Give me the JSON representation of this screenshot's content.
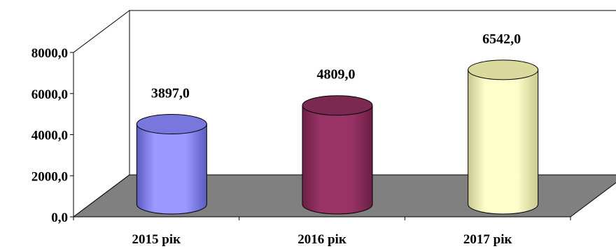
{
  "chart_data": {
    "type": "bar",
    "style": "3d-cylinder",
    "categories": [
      "2015 рік",
      "2016 рік",
      "2017 рік"
    ],
    "values": [
      3897.0,
      4809.0,
      6542.0
    ],
    "value_labels": [
      "3897,0",
      "4809,0",
      "6542,0"
    ],
    "yticks": [
      "0,0",
      "2000,0",
      "4000,0",
      "6000,0",
      "8000,0"
    ],
    "ytick_values": [
      0,
      2000,
      4000,
      6000,
      8000
    ],
    "ylim": [
      0,
      8000
    ],
    "title": "",
    "xlabel": "",
    "ylabel": "",
    "grid": false,
    "legend": false,
    "colors": {
      "bars": [
        "#9999ff",
        "#993366",
        "#ffffcc"
      ],
      "bars_dark": [
        "#5c5cc0",
        "#6b1f44",
        "#c8c890"
      ],
      "bars_top": [
        "#7777dd",
        "#7a2a50",
        "#dada9e"
      ],
      "floor": "#808080",
      "walls": "#ffffff",
      "axis": "#000000"
    }
  }
}
